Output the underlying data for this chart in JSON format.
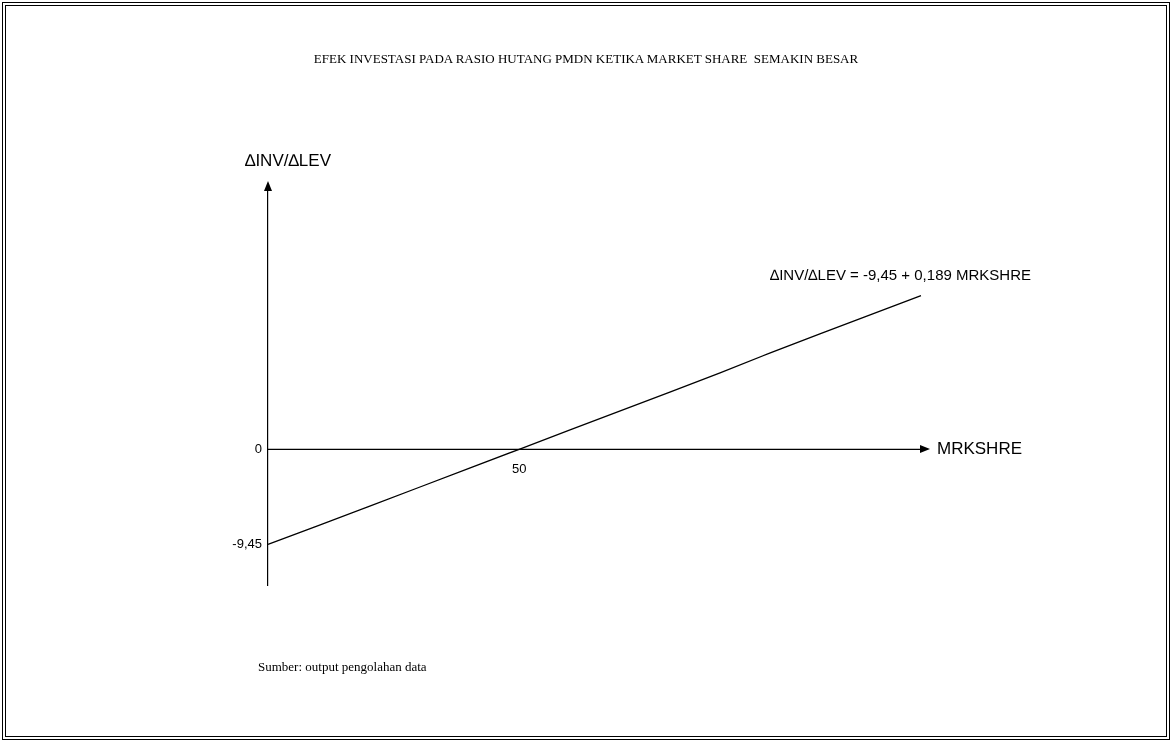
{
  "chart_data": {
    "type": "line",
    "title": "EFEK INVESTASI PADA RASIO HUTANG PMDN KETIKA MARKET SHARE  SEMAKIN BESAR",
    "xlabel": "MRKSHRE",
    "ylabel": "∆INV/∆LEV",
    "categories": [
      null,
      null,
      null,
      null,
      null,
      "50",
      null,
      null,
      null,
      null,
      null,
      null,
      null,
      null
    ],
    "series": [
      {
        "color": "#000000",
        "values": [
          -9.45,
          -7.6,
          -5.7,
          -3.8,
          -1.9,
          0,
          1.9,
          3.8,
          5.7,
          7.6,
          9.6,
          11.5,
          13.4,
          15.3
        ]
      }
    ],
    "ylim": [
      -13.5,
      25.8
    ],
    "yticks": [
      {
        "value": -9.45,
        "label": "-9,45"
      },
      0
    ],
    "ref_lines": [
      {
        "axis": "y",
        "value": 0,
        "color": "#000000"
      }
    ],
    "grid": false,
    "legend": false,
    "marker": "none",
    "line_style": "solid",
    "annotations": [
      "∆INV/∆LEV = -9,45 + 0,189 MRKSHRE",
      "Sumber: output pengolahan data"
    ]
  }
}
